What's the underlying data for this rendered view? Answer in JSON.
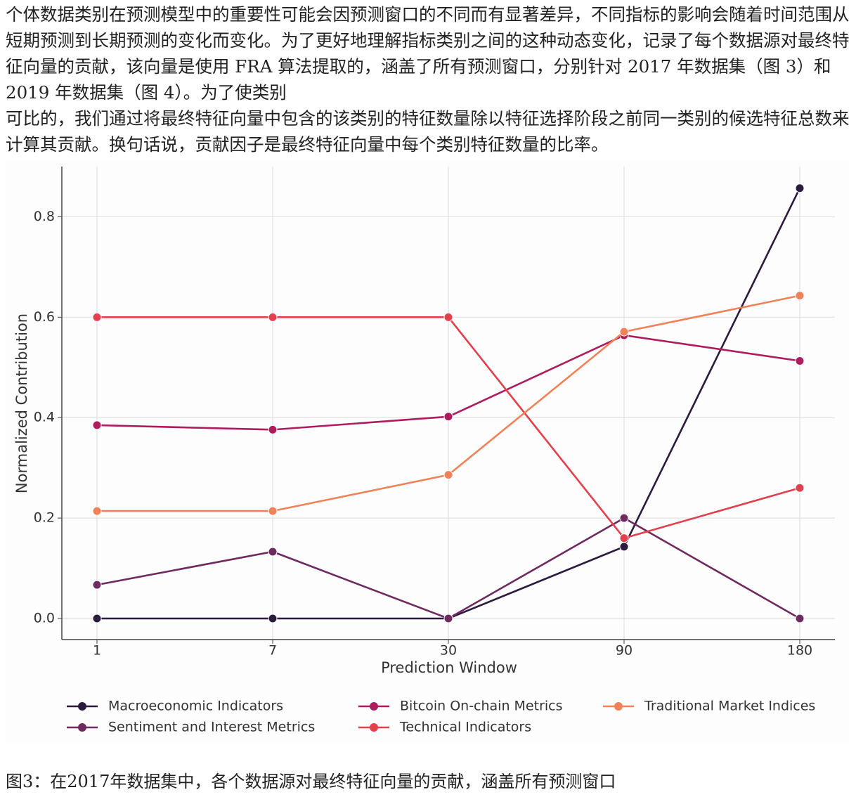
{
  "paragraphs": [
    "个体数据类别在预测模型中的重要性可能会因预测窗口的不同而有显著差异，不同指标的影响会随着时间范围从短期预测到长期预测的变化而变化。为了更好地理解指标类别之间的这种动态变化，记录了每个数据源对最终特征向量的贡献，该向量是使用 FRA 算法提取的，涵盖了所有预测窗口，分别针对 2017 年数据集（图 3）和 2019 年数据集（图 4）。为了使类别",
    "可比的，我们通过将最终特征向量中包含的该类别的特征数量除以特征选择阶段之前同一类别的候选特征总数来计算其贡献。换句话说，贡献因子是最终特征向量中每个类别特征数量的比率。"
  ],
  "chart_data": {
    "type": "line",
    "x_label": "Prediction Window",
    "y_label": "Normalized Contribution",
    "categories": [
      "1",
      "7",
      "30",
      "90",
      "180"
    ],
    "ylim": [
      -0.042,
      0.9
    ],
    "yticks": [
      {
        "value": 0,
        "label": "0.0"
      },
      0.2,
      0.4,
      0.6,
      0.8
    ],
    "grid": true,
    "legend": "bottom",
    "series": [
      {
        "name": "Macroeconomic Indicators",
        "color": "#2b1b3d",
        "values": [
          0,
          0,
          0,
          0.143,
          0.857
        ]
      },
      {
        "name": "Sentiment and Interest Metrics",
        "color": "#6f2a60",
        "values": [
          0.067,
          0.133,
          0,
          0.2,
          0
        ]
      },
      {
        "name": "Bitcoin On-chain Metrics",
        "color": "#ad1d5e",
        "values": [
          0.385,
          0.376,
          0.402,
          0.564,
          0.513
        ]
      },
      {
        "name": "Technical Indicators",
        "color": "#e0414c",
        "values": [
          0.6,
          0.6,
          0.6,
          0.16,
          0.26
        ]
      },
      {
        "name": "Traditional Market Indices",
        "color": "#f0825a",
        "values": [
          0.214,
          0.214,
          0.286,
          0.571,
          0.643
        ]
      }
    ]
  },
  "caption": "图3：在2017年数据集中，各个数据源对最终特征向量的贡献，涵盖所有预测窗口"
}
